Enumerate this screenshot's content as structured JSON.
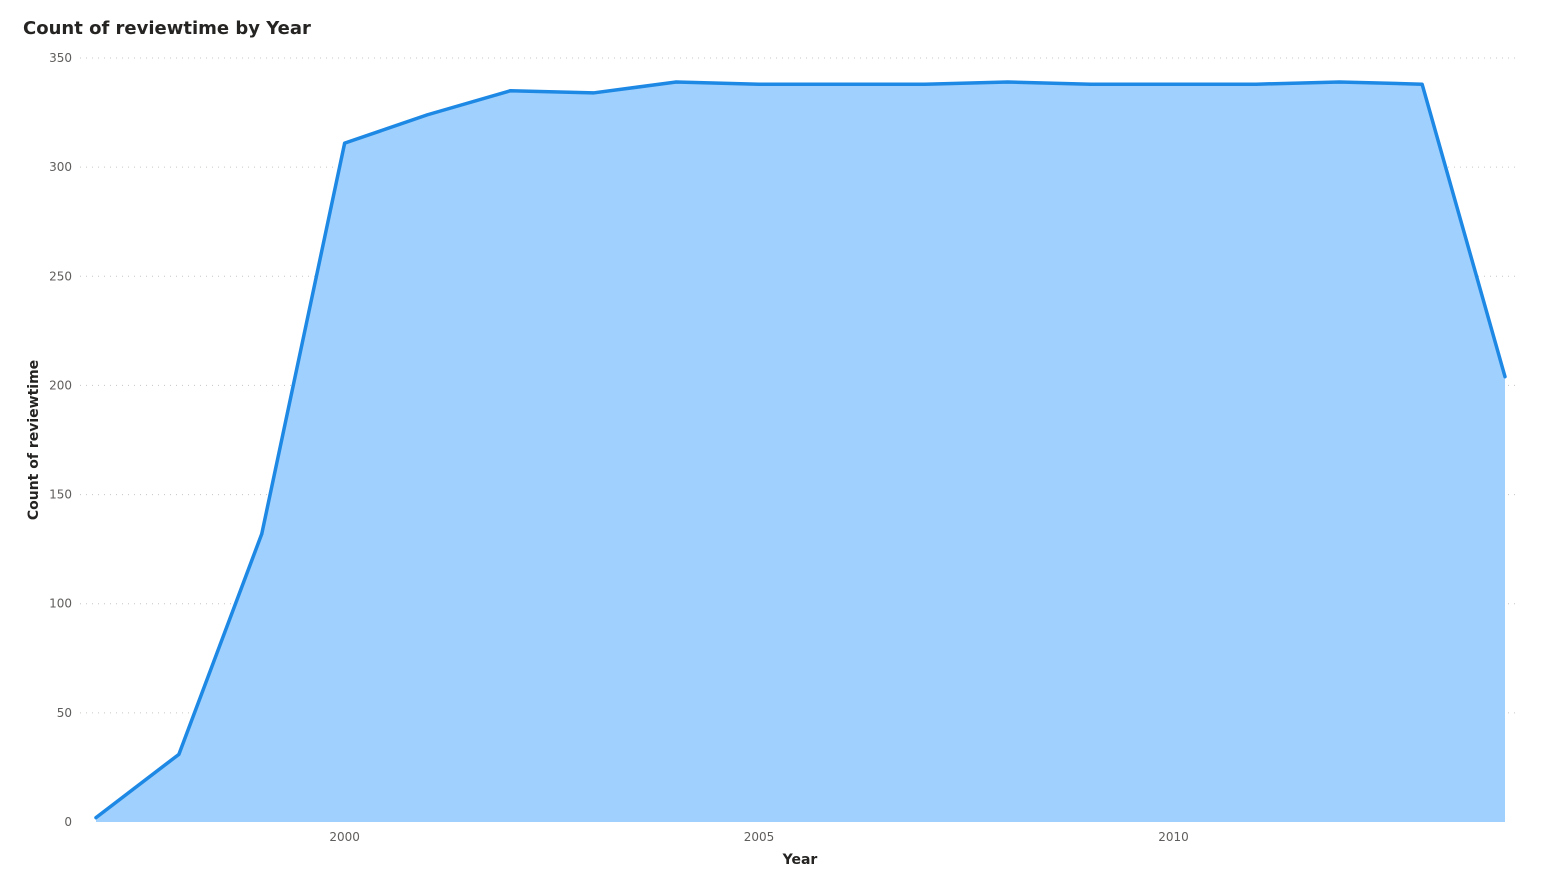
{
  "chart_data": {
    "type": "area",
    "title": "Count of reviewtime by Year",
    "xlabel": "Year",
    "ylabel": "Count of reviewtime",
    "x": [
      1997,
      1998,
      1999,
      2000,
      2001,
      2002,
      2003,
      2004,
      2005,
      2006,
      2007,
      2008,
      2009,
      2010,
      2011,
      2012,
      2013,
      2014
    ],
    "series": [
      {
        "values": [
          2,
          31,
          132,
          311,
          324,
          335,
          334,
          339,
          338,
          338,
          338,
          339,
          338,
          338,
          338,
          339,
          338,
          204
        ]
      }
    ],
    "xlim": [
      1997,
      2014
    ],
    "ylim": [
      0,
      350
    ],
    "y_ticks": [
      0,
      50,
      100,
      150,
      200,
      250,
      300,
      350
    ],
    "x_ticks": [
      2000,
      2005,
      2010
    ],
    "grid": true,
    "legend": "none",
    "colors": {
      "line": "#1E88E5",
      "fill": "#A0D0FD",
      "grid": "#C8C6C4",
      "tick_text": "#605E5C",
      "title_text": "#252423"
    }
  }
}
